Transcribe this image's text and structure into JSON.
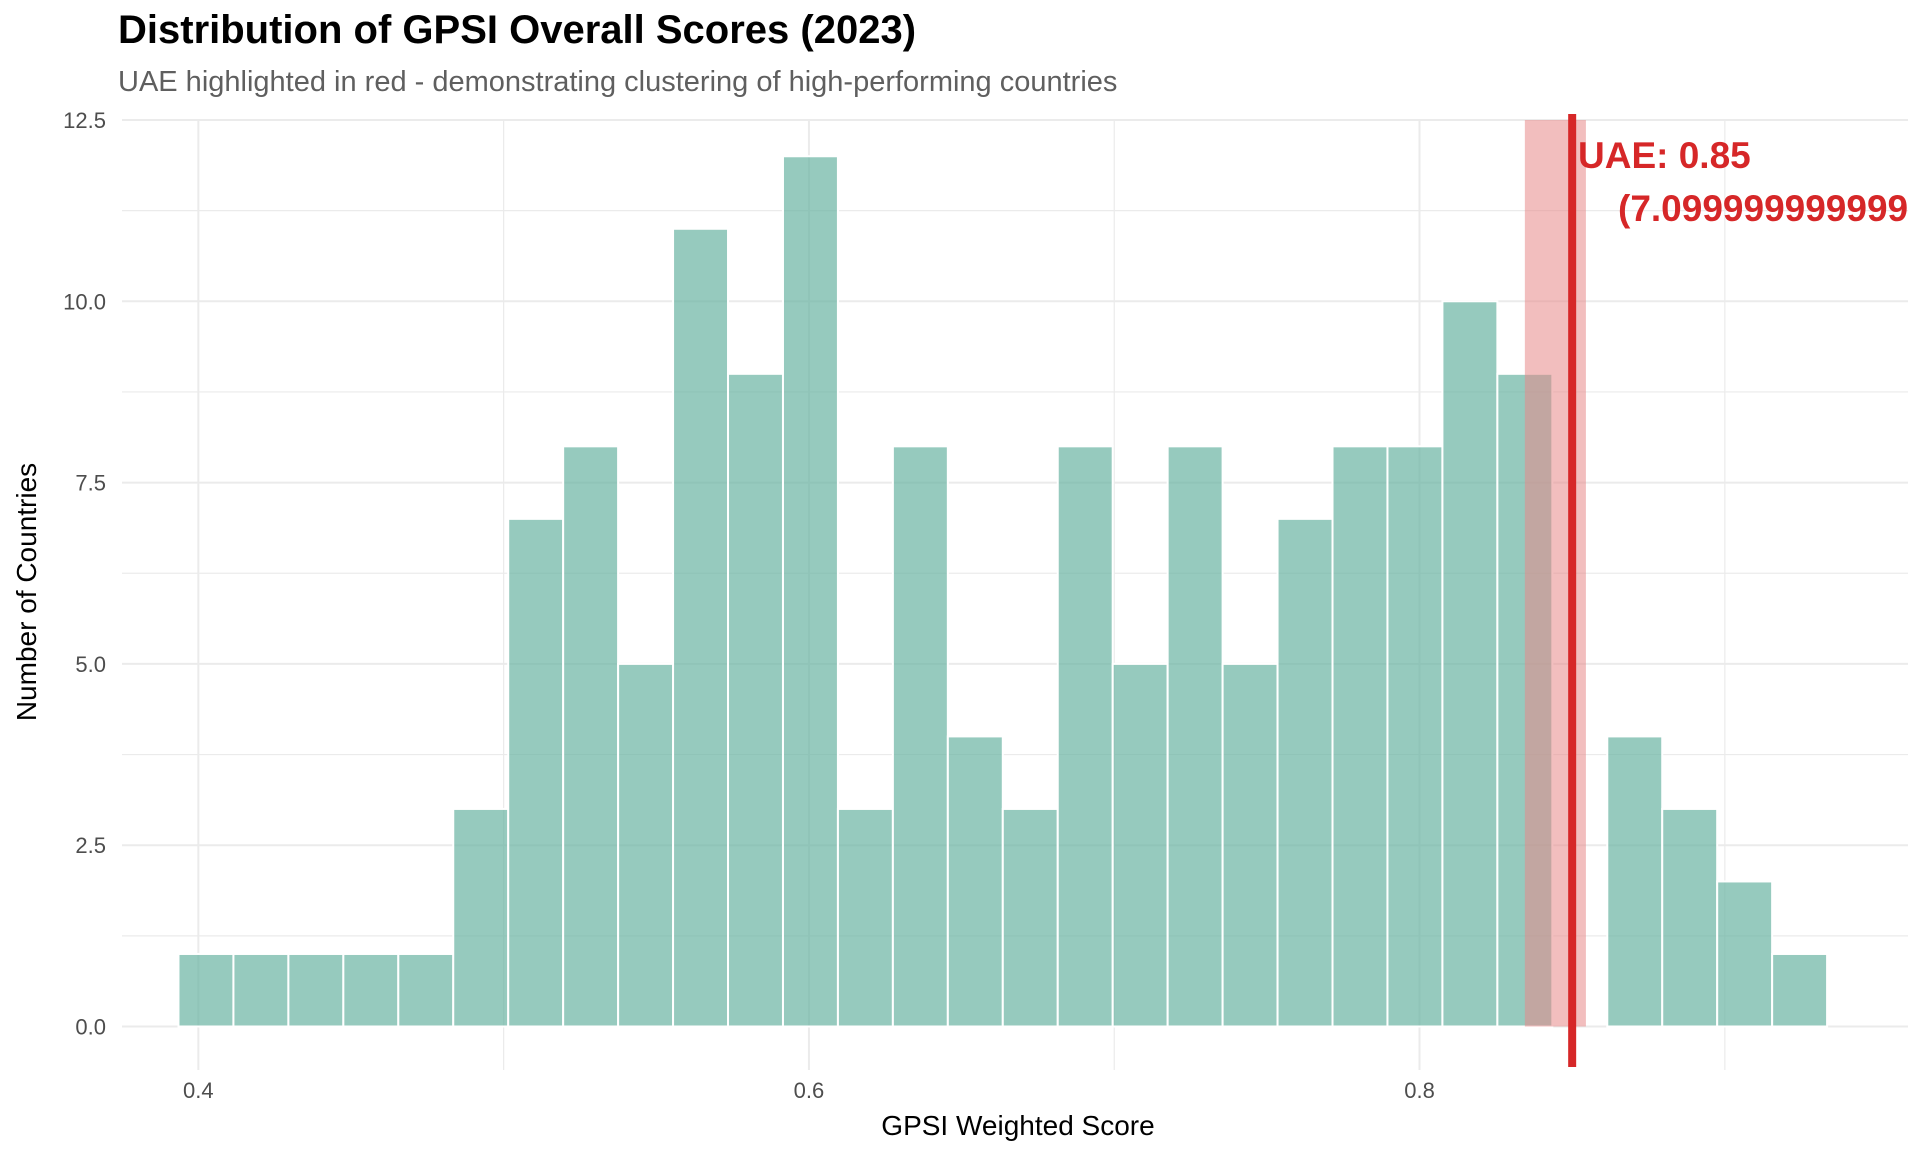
{
  "chart_data": {
    "type": "bar",
    "title": "Distribution of GPSI Overall Scores (2023)",
    "subtitle": "UAE highlighted in red - demonstrating clustering of high-performing countries",
    "xlabel": "GPSI Weighted Score",
    "ylabel": "Number of Countries",
    "xlim": [
      0.375,
      0.96
    ],
    "ylim": [
      -0.6,
      12.5
    ],
    "x_ticks": [
      "0.4",
      "0.6",
      "0.8"
    ],
    "x_tick_values": [
      0.4,
      0.6,
      0.8
    ],
    "y_ticks": [
      "0.0",
      "2.5",
      "5.0",
      "7.5",
      "10.0",
      "12.5"
    ],
    "y_tick_values": [
      0,
      2.5,
      5,
      7.5,
      10,
      12.5
    ],
    "grid": true,
    "bin_width": 0.018,
    "bins": [
      {
        "x": 0.4025,
        "value": 1
      },
      {
        "x": 0.4205,
        "value": 1
      },
      {
        "x": 0.4385,
        "value": 1
      },
      {
        "x": 0.4565,
        "value": 1
      },
      {
        "x": 0.4745,
        "value": 1
      },
      {
        "x": 0.4925,
        "value": 3
      },
      {
        "x": 0.5105,
        "value": 7
      },
      {
        "x": 0.5285,
        "value": 8
      },
      {
        "x": 0.5465,
        "value": 5
      },
      {
        "x": 0.5645,
        "value": 11
      },
      {
        "x": 0.5825,
        "value": 9
      },
      {
        "x": 0.6005,
        "value": 12
      },
      {
        "x": 0.6185,
        "value": 3
      },
      {
        "x": 0.6365,
        "value": 8
      },
      {
        "x": 0.6545,
        "value": 4
      },
      {
        "x": 0.6725,
        "value": 3
      },
      {
        "x": 0.6905,
        "value": 8
      },
      {
        "x": 0.7085,
        "value": 5
      },
      {
        "x": 0.7265,
        "value": 8
      },
      {
        "x": 0.7445,
        "value": 5
      },
      {
        "x": 0.7625,
        "value": 7
      },
      {
        "x": 0.7805,
        "value": 8
      },
      {
        "x": 0.7985,
        "value": 8
      },
      {
        "x": 0.8165,
        "value": 10
      },
      {
        "x": 0.8345,
        "value": 9
      },
      {
        "x": 0.8525,
        "value": 0
      },
      {
        "x": 0.8705,
        "value": 4
      },
      {
        "x": 0.8885,
        "value": 3
      },
      {
        "x": 0.9065,
        "value": 2
      },
      {
        "x": 0.9245,
        "value": 1
      }
    ],
    "highlight": {
      "label": "UAE",
      "score": 0.85,
      "band_x": [
        0.8345,
        0.8545
      ],
      "band_y": [
        0,
        12.5
      ],
      "annotation_line1": "UAE: 0.85",
      "annotation_line2": "(7.099999999999"
    },
    "colors": {
      "bar_fill": "#69b3a2",
      "highlight": "#d62728",
      "band_fill": "#e88888",
      "grid": "#ebebeb"
    }
  }
}
